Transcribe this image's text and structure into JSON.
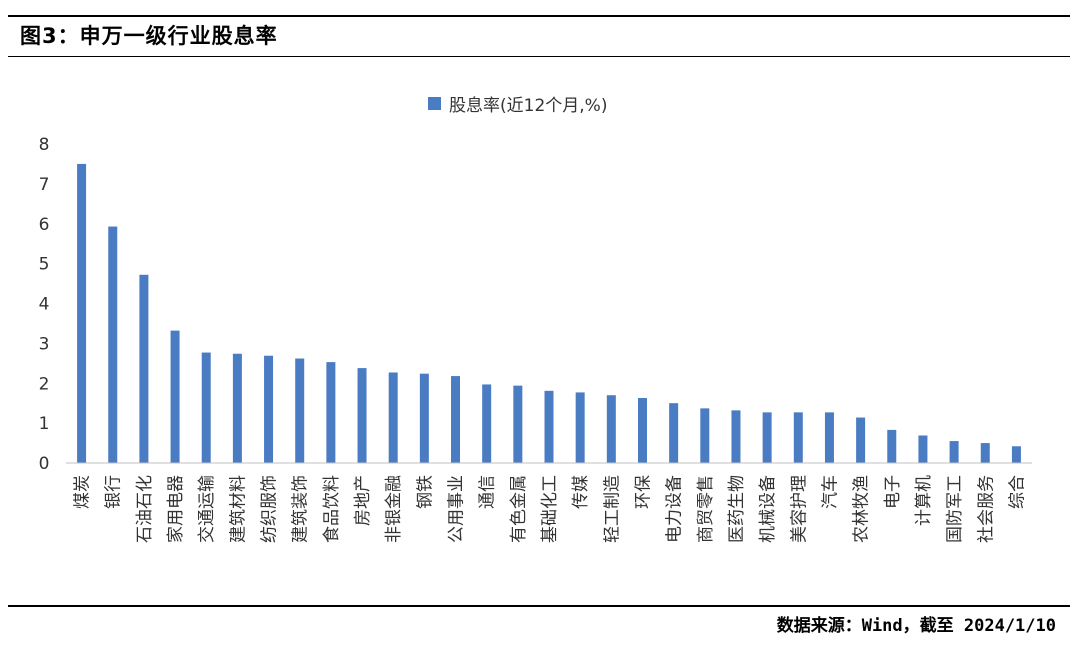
{
  "figure": {
    "title": "图3：申万一级行业股息率",
    "source": "数据来源：Wind，截至 2024/1/10"
  },
  "colors": {
    "bar": "#4a7cc3",
    "axis": "#c0c0c0",
    "text": "#333333"
  },
  "chart_data": {
    "type": "bar",
    "title": "",
    "xlabel": "",
    "ylabel": "",
    "ylim": [
      0,
      8
    ],
    "yticks": [
      0,
      1,
      2,
      3,
      4,
      5,
      6,
      7,
      8
    ],
    "grid": false,
    "legend_position": "top-center",
    "categories": [
      "煤炭",
      "银行",
      "石油石化",
      "家用电器",
      "交通运输",
      "建筑材料",
      "纺织服饰",
      "建筑装饰",
      "食品饮料",
      "房地产",
      "非银金融",
      "钢铁",
      "公用事业",
      "通信",
      "有色金属",
      "基础化工",
      "传媒",
      "轻工制造",
      "环保",
      "电力设备",
      "商贸零售",
      "医药生物",
      "机械设备",
      "美容护理",
      "汽车",
      "农林牧渔",
      "电子",
      "计算机",
      "国防军工",
      "社会服务",
      "综合"
    ],
    "series": [
      {
        "name": "股息率(近12个月,%)",
        "values": [
          7.5,
          5.93,
          4.72,
          3.32,
          2.77,
          2.74,
          2.69,
          2.62,
          2.53,
          2.38,
          2.27,
          2.24,
          2.18,
          1.97,
          1.94,
          1.81,
          1.77,
          1.7,
          1.63,
          1.5,
          1.37,
          1.32,
          1.27,
          1.27,
          1.27,
          1.14,
          0.83,
          0.69,
          0.55,
          0.5,
          0.42
        ]
      }
    ]
  }
}
